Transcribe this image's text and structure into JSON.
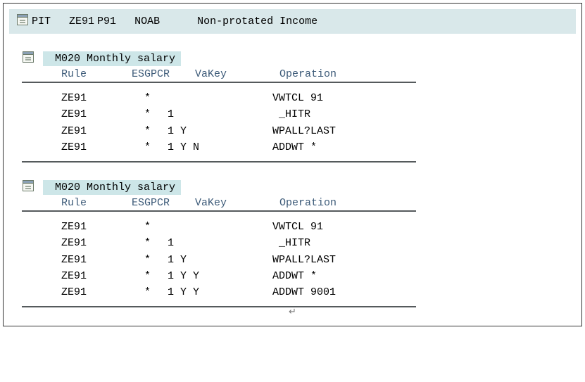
{
  "header": {
    "function": "PIT",
    "rule": "ZE91",
    "par1": "P91",
    "par2": "NOAB",
    "description": "Non-protated Income"
  },
  "blocks": [
    {
      "title_code": "M020",
      "title_text": "Monthly salary",
      "columns": {
        "rule": "Rule",
        "esgpcr": "ESGPCR",
        "vakey": "VaKey",
        "operation": "Operation"
      },
      "rows": [
        {
          "rule": "ZE91",
          "esgpcr": "*",
          "vakey": "",
          "operation": "VWTCL 91"
        },
        {
          "rule": "ZE91",
          "esgpcr": "*",
          "vakey": "1",
          "operation": " _HITR"
        },
        {
          "rule": "ZE91",
          "esgpcr": "*",
          "vakey": "1 Y",
          "operation": "WPALL?LAST"
        },
        {
          "rule": "ZE91",
          "esgpcr": "*",
          "vakey": "1 Y N",
          "operation": "ADDWT *"
        }
      ]
    },
    {
      "title_code": "M020",
      "title_text": "Monthly salary",
      "columns": {
        "rule": "Rule",
        "esgpcr": "ESGPCR",
        "vakey": "VaKey",
        "operation": "Operation"
      },
      "rows": [
        {
          "rule": "ZE91",
          "esgpcr": "*",
          "vakey": "",
          "operation": "VWTCL 91"
        },
        {
          "rule": "ZE91",
          "esgpcr": "*",
          "vakey": "1",
          "operation": " _HITR"
        },
        {
          "rule": "ZE91",
          "esgpcr": "*",
          "vakey": "1 Y",
          "operation": "WPALL?LAST"
        },
        {
          "rule": "ZE91",
          "esgpcr": "*",
          "vakey": "1 Y Y",
          "operation": "ADDWT *"
        },
        {
          "rule": "ZE91",
          "esgpcr": "*",
          "vakey": "1 Y Y",
          "operation": "ADDWT 9001"
        }
      ]
    }
  ],
  "colors": {
    "header_bg": "#d9e8ea",
    "title_bg": "#cde6e8",
    "column_text": "#3c5a78",
    "divider": "#555a5c"
  }
}
